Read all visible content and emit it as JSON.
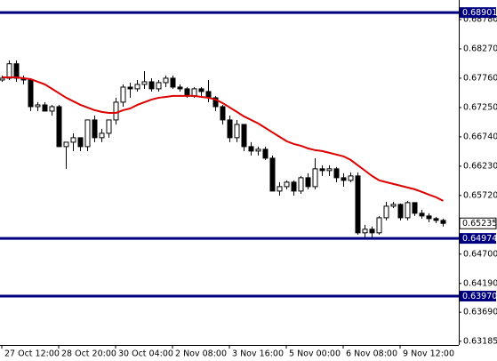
{
  "chart_data": {
    "type": "candlestick",
    "categories": [
      "27 Oct 12:00",
      null,
      null,
      null,
      null,
      null,
      null,
      null,
      "28 Oct 20:00",
      null,
      null,
      null,
      null,
      null,
      null,
      null,
      "30 Oct 04:00",
      null,
      null,
      null,
      null,
      null,
      null,
      null,
      "2 Nov 08:00",
      null,
      null,
      null,
      null,
      null,
      null,
      null,
      "3 Nov 16:00",
      null,
      null,
      null,
      null,
      null,
      null,
      null,
      "5 Nov 00:00",
      null,
      null,
      null,
      null,
      null,
      null,
      null,
      "6 Nov 08:00",
      null,
      null,
      null,
      null,
      null,
      null,
      null,
      "9 Nov 12:00",
      null,
      null,
      null,
      null,
      null,
      null
    ],
    "open": [
      0.67729,
      0.6776,
      0.68011,
      0.6776,
      0.67729,
      0.67265,
      0.67296,
      0.67188,
      0.67265,
      0.6657,
      0.66647,
      0.66725,
      0.6657,
      0.67034,
      0.66725,
      0.66802,
      0.67034,
      0.67343,
      0.67605,
      0.67575,
      0.67652,
      0.67698,
      0.67575,
      0.67683,
      0.6776,
      0.67605,
      0.67575,
      0.67451,
      0.67575,
      0.67528,
      0.6742,
      0.67265,
      0.67034,
      0.66725,
      0.66956,
      0.6657,
      0.66493,
      0.66524,
      0.66369,
      0.65797,
      0.65874,
      0.65952,
      0.65797,
      0.66029,
      0.65874,
      0.66184,
      0.66153,
      0.66184,
      0.66029,
      0.65983,
      0.6606,
      0.65071,
      0.65133,
      0.65071,
      0.65333,
      0.65534,
      0.65565,
      0.65333,
      0.65596,
      0.65411,
      0.65364,
      0.65318,
      0.65287
    ],
    "high": [
      0.67806,
      0.68069,
      0.68069,
      0.67806,
      0.6776,
      0.67343,
      0.67343,
      0.67296,
      0.67296,
      0.66647,
      0.66802,
      0.66725,
      0.67034,
      0.6711,
      0.6688,
      0.67034,
      0.6742,
      0.67652,
      0.67683,
      0.67729,
      0.67883,
      0.6776,
      0.67729,
      0.67806,
      0.67806,
      0.67652,
      0.67605,
      0.67605,
      0.67605,
      0.67729,
      0.67451,
      0.67296,
      0.6711,
      0.67034,
      0.66956,
      0.66647,
      0.6657,
      0.6657,
      0.66415,
      0.65952,
      0.65983,
      0.65983,
      0.6606,
      0.66106,
      0.66369,
      0.66246,
      0.66246,
      0.66215,
      0.66106,
      0.66122,
      0.66122,
      0.6521,
      0.6518,
      0.65364,
      0.6561,
      0.6561,
      0.6558,
      0.65627,
      0.656,
      0.65473,
      0.65411,
      0.65349,
      0.65318
    ],
    "low": [
      0.67698,
      0.67729,
      0.67698,
      0.67652,
      0.67188,
      0.67188,
      0.67188,
      0.6711,
      0.6657,
      0.66184,
      0.66493,
      0.66493,
      0.66493,
      0.66647,
      0.66647,
      0.66725,
      0.66956,
      0.67265,
      0.6742,
      0.67528,
      0.67575,
      0.67528,
      0.67528,
      0.67605,
      0.67575,
      0.67528,
      0.6742,
      0.6742,
      0.67451,
      0.67343,
      0.67188,
      0.66956,
      0.66647,
      0.66647,
      0.66493,
      0.66415,
      0.66415,
      0.66338,
      0.65797,
      0.6572,
      0.65829,
      0.6572,
      0.6575,
      0.65829,
      0.65829,
      0.6606,
      0.6606,
      0.65952,
      0.65874,
      0.65952,
      0.6504,
      0.6499,
      0.6499,
      0.6504,
      0.65287,
      0.655,
      0.65287,
      0.65287,
      0.65364,
      0.65318,
      0.65256,
      0.6524,
      0.6518
    ],
    "close": [
      0.6776,
      0.68011,
      0.6776,
      0.67729,
      0.67265,
      0.67296,
      0.67188,
      0.67265,
      0.6657,
      0.66647,
      0.66725,
      0.6657,
      0.67034,
      0.66725,
      0.66802,
      0.67034,
      0.67343,
      0.67605,
      0.67575,
      0.67652,
      0.67698,
      0.67575,
      0.67683,
      0.6776,
      0.67605,
      0.67575,
      0.67451,
      0.67575,
      0.67528,
      0.6742,
      0.67265,
      0.67034,
      0.66725,
      0.66956,
      0.6657,
      0.66493,
      0.66524,
      0.66369,
      0.65797,
      0.65874,
      0.65952,
      0.65797,
      0.66029,
      0.65874,
      0.66184,
      0.66153,
      0.66184,
      0.66029,
      0.65983,
      0.6606,
      0.65071,
      0.65133,
      0.65071,
      0.65333,
      0.65534,
      0.65565,
      0.65333,
      0.65596,
      0.65411,
      0.65364,
      0.65318,
      0.65287,
      0.65235
    ],
    "moving_average": {
      "color": "#dd0000",
      "values": [
        0.67775,
        0.67775,
        0.67775,
        0.6776,
        0.67745,
        0.67698,
        0.67652,
        0.67575,
        0.67497,
        0.6742,
        0.67358,
        0.67296,
        0.6725,
        0.67204,
        0.67173,
        0.67157,
        0.67157,
        0.67204,
        0.67234,
        0.67296,
        0.67343,
        0.67389,
        0.6742,
        0.67435,
        0.67451,
        0.67451,
        0.67451,
        0.67451,
        0.67435,
        0.6742,
        0.67389,
        0.67327,
        0.6725,
        0.67173,
        0.67095,
        0.67034,
        0.66972,
        0.66895,
        0.66817,
        0.6674,
        0.66663,
        0.66616,
        0.66585,
        0.66539,
        0.66508,
        0.66493,
        0.66462,
        0.66431,
        0.664,
        0.66338,
        0.66245,
        0.66153,
        0.6606,
        0.65983,
        0.65952,
        0.65921,
        0.6589,
        0.65859,
        0.65828,
        0.65782,
        0.65735,
        0.65689,
        0.65627
      ]
    },
    "up_color": "#ffffff",
    "down_color": "#000000",
    "ylim": [
      0.6312,
      0.6912
    ],
    "yticks": [
      {
        "value": 0.6878,
        "label": "0.68780"
      },
      {
        "value": 0.6827,
        "label": "0.68270"
      },
      {
        "value": 0.6776,
        "label": "0.67760"
      },
      {
        "value": 0.6725,
        "label": "0.67250"
      },
      {
        "value": 0.6674,
        "label": "0.66740"
      },
      {
        "value": 0.6623,
        "label": "0.66230"
      },
      {
        "value": 0.6572,
        "label": "0.65720"
      },
      {
        "value": 0.647,
        "label": "0.64700"
      },
      {
        "value": 0.6419,
        "label": "0.64190"
      },
      {
        "value": 0.6369,
        "label": "0.63690"
      },
      0.63185
    ],
    "levels": [
      0.68901,
      0.64974,
      {
        "value": 0.6397,
        "label": "0.63970"
      }
    ],
    "level_color": "#000080",
    "current_price": 0.65235
  }
}
